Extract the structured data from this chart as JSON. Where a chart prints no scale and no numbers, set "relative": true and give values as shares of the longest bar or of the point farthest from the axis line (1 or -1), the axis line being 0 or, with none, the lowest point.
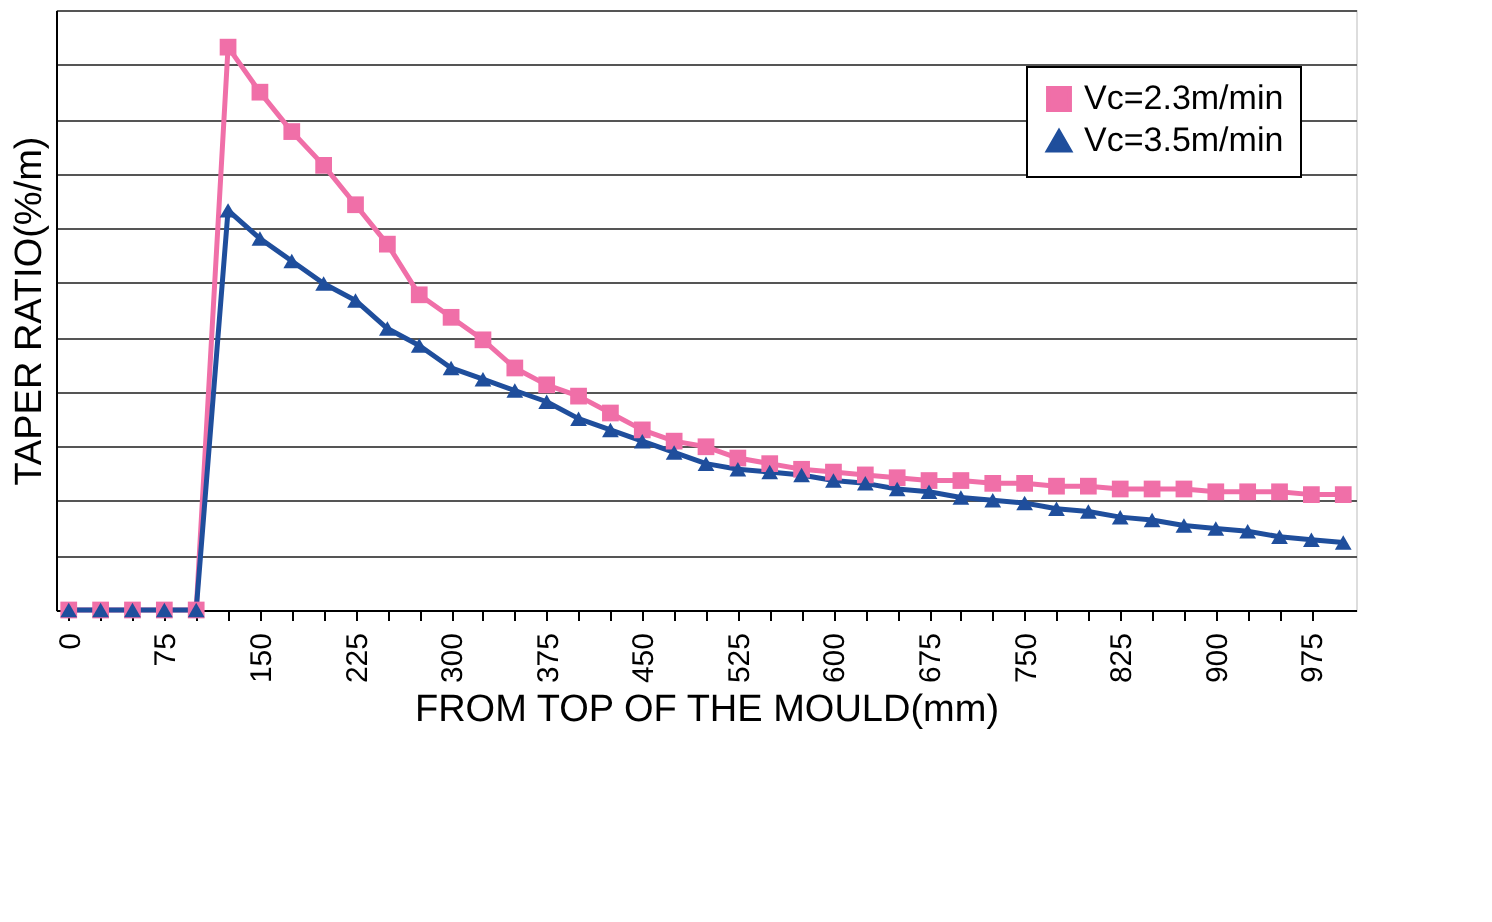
{
  "chart_data": {
    "type": "line",
    "xlabel": "FROM TOP OF THE MOULD(mm)",
    "ylabel": "TAPER RATIO(%/m)",
    "relative": true,
    "x": [
      0,
      25,
      50,
      75,
      100,
      125,
      150,
      175,
      200,
      225,
      250,
      275,
      300,
      325,
      350,
      375,
      400,
      425,
      450,
      475,
      500,
      525,
      550,
      575,
      600,
      625,
      650,
      675,
      700,
      725,
      750,
      775,
      800,
      825,
      850,
      875,
      900,
      925,
      950,
      975,
      1000
    ],
    "xlim": [
      -10,
      1010
    ],
    "xticks": [
      0,
      {
        "value": 25,
        "label": null
      },
      {
        "value": 50,
        "label": null
      },
      75,
      {
        "value": 100,
        "label": null
      },
      {
        "value": 125,
        "label": null
      },
      150,
      {
        "value": 175,
        "label": null
      },
      {
        "value": 200,
        "label": null
      },
      225,
      {
        "value": 250,
        "label": null
      },
      {
        "value": 275,
        "label": null
      },
      300,
      {
        "value": 325,
        "label": null
      },
      {
        "value": 350,
        "label": null
      },
      375,
      {
        "value": 400,
        "label": null
      },
      {
        "value": 425,
        "label": null
      },
      450,
      {
        "value": 475,
        "label": null
      },
      {
        "value": 500,
        "label": null
      },
      525,
      {
        "value": 550,
        "label": null
      },
      {
        "value": 575,
        "label": null
      },
      600,
      {
        "value": 625,
        "label": null
      },
      {
        "value": 650,
        "label": null
      },
      675,
      {
        "value": 700,
        "label": null
      },
      {
        "value": 725,
        "label": null
      },
      750,
      {
        "value": 775,
        "label": null
      },
      {
        "value": 800,
        "label": null
      },
      825,
      {
        "value": 850,
        "label": null
      },
      {
        "value": 875,
        "label": null
      },
      900,
      {
        "value": 925,
        "label": null
      },
      {
        "value": 950,
        "label": null
      },
      975
    ],
    "series": [
      {
        "name": "Vc=2.3m/min",
        "color": "#f06fa8",
        "marker": "square",
        "values": [
          0,
          0,
          0,
          0,
          0,
          1.0,
          0.92,
          0.85,
          0.79,
          0.72,
          0.65,
          0.56,
          0.52,
          0.48,
          0.43,
          0.4,
          0.38,
          0.35,
          0.32,
          0.3,
          0.29,
          0.27,
          0.26,
          0.25,
          0.245,
          0.24,
          0.235,
          0.23,
          0.23,
          0.225,
          0.225,
          0.22,
          0.22,
          0.215,
          0.215,
          0.215,
          0.21,
          0.21,
          0.21,
          0.205,
          0.205
        ]
      },
      {
        "name": "Vc=3.5m/min",
        "color": "#1f4e9c",
        "marker": "triangle",
        "values": [
          0,
          0,
          0,
          0,
          0,
          0.71,
          0.66,
          0.62,
          0.58,
          0.55,
          0.5,
          0.47,
          0.43,
          0.41,
          0.39,
          0.37,
          0.34,
          0.32,
          0.3,
          0.28,
          0.26,
          0.25,
          0.245,
          0.24,
          0.23,
          0.225,
          0.215,
          0.21,
          0.2,
          0.195,
          0.19,
          0.18,
          0.175,
          0.165,
          0.16,
          0.15,
          0.145,
          0.14,
          0.13,
          0.125,
          0.12
        ]
      }
    ],
    "grid": "y",
    "legend": "top right",
    "line_style": "solid"
  }
}
